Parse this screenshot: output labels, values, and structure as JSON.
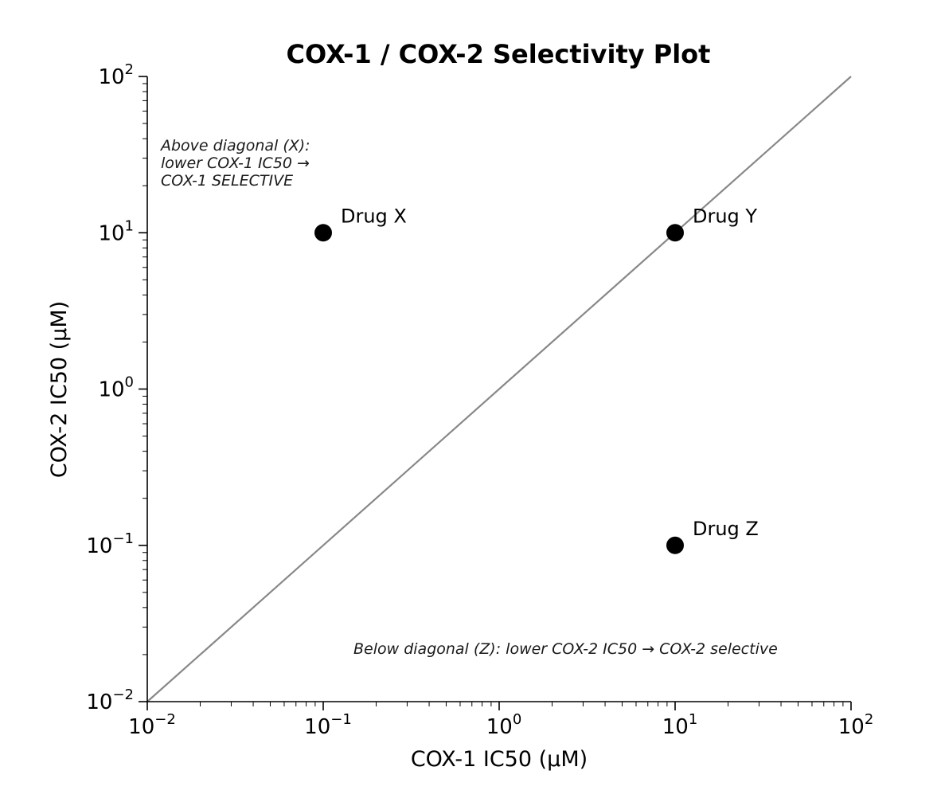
{
  "chart_data": {
    "type": "scatter",
    "title": "COX-1 / COX-2 Selectivity Plot",
    "xlabel": "COX-1 IC50 (μM)",
    "ylabel": "COX-2 IC50 (μM)",
    "xscale": "log",
    "yscale": "log",
    "xlim": [
      0.01,
      100
    ],
    "ylim": [
      0.01,
      100
    ],
    "grid": false,
    "x_ticks": [
      {
        "value": 0.01,
        "base": "10",
        "exp": "−2"
      },
      {
        "value": 0.1,
        "base": "10",
        "exp": "−1"
      },
      {
        "value": 1,
        "base": "10",
        "exp": "0"
      },
      {
        "value": 10,
        "base": "10",
        "exp": "1"
      },
      {
        "value": 100,
        "base": "10",
        "exp": "2"
      }
    ],
    "y_ticks": [
      {
        "value": 0.01,
        "base": "10",
        "exp": "−2"
      },
      {
        "value": 0.1,
        "base": "10",
        "exp": "−1"
      },
      {
        "value": 1,
        "base": "10",
        "exp": "0"
      },
      {
        "value": 10,
        "base": "10",
        "exp": "1"
      },
      {
        "value": 100,
        "base": "10",
        "exp": "2"
      }
    ],
    "points": [
      {
        "label": "Drug X",
        "x": 0.1,
        "y": 10
      },
      {
        "label": "Drug Y",
        "x": 10,
        "y": 10
      },
      {
        "label": "Drug Z",
        "x": 10,
        "y": 0.1
      }
    ],
    "reference_line": {
      "from": [
        0.01,
        0.01
      ],
      "to": [
        100,
        100
      ],
      "color": "#888888"
    },
    "annotations": [
      {
        "id": "above",
        "lines": [
          "Above diagonal (X):",
          "lower COX-1 IC50 →",
          "COX-1 SELECTIVE"
        ]
      },
      {
        "id": "below",
        "lines": [
          "Below diagonal (Z): lower COX-2 IC50 → COX-2 selective"
        ]
      }
    ],
    "colors": {
      "points": "#000000",
      "axes": "#000000"
    }
  }
}
